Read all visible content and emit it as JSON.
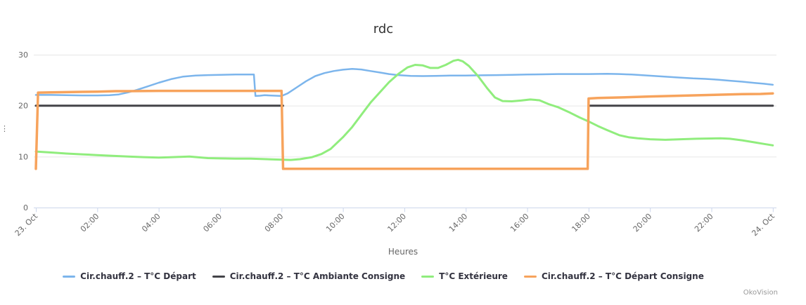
{
  "credits": "OkoVision",
  "y_axis": {
    "overflow_ellipsis": "⋮"
  },
  "chart_data": {
    "type": "line",
    "title": "rdc",
    "xlabel": "Heures",
    "ylabel": "",
    "x_unit": "hours_since_23_oct_00h",
    "xlim": [
      0,
      24.2
    ],
    "ylim": [
      0,
      30
    ],
    "grid": "horizontal",
    "legend_position": "bottom-center",
    "x_ticks": [
      {
        "h": 0,
        "label": "23. Oct"
      },
      {
        "h": 2,
        "label": "02:00"
      },
      {
        "h": 4,
        "label": "04:00"
      },
      {
        "h": 6,
        "label": "06:00"
      },
      {
        "h": 8,
        "label": "08:00"
      },
      {
        "h": 10,
        "label": "10:00"
      },
      {
        "h": 12,
        "label": "12:00"
      },
      {
        "h": 14,
        "label": "14:00"
      },
      {
        "h": 16,
        "label": "16:00"
      },
      {
        "h": 18,
        "label": "18:00"
      },
      {
        "h": 20,
        "label": "20:00"
      },
      {
        "h": 22,
        "label": "22:00"
      },
      {
        "h": 24,
        "label": "24. Oct"
      }
    ],
    "y_ticks": [
      {
        "v": 0,
        "label": "0"
      },
      {
        "v": 10,
        "label": "10"
      },
      {
        "v": 20,
        "label": "20"
      },
      {
        "v": 30,
        "label": "30"
      }
    ],
    "series": [
      {
        "name": "Cir.chauff.2 – T°C Départ",
        "color": "#7cb5ec",
        "width": 2.5,
        "points": [
          [
            0,
            22.1
          ],
          [
            0.5,
            22.1
          ],
          [
            1,
            22.05
          ],
          [
            1.5,
            22.0
          ],
          [
            2,
            22.0
          ],
          [
            2.4,
            22.05
          ],
          [
            2.7,
            22.2
          ],
          [
            3,
            22.6
          ],
          [
            3.3,
            23.1
          ],
          [
            3.6,
            23.7
          ],
          [
            4,
            24.5
          ],
          [
            4.4,
            25.2
          ],
          [
            4.8,
            25.7
          ],
          [
            5.2,
            25.9
          ],
          [
            5.6,
            26.0
          ],
          [
            6,
            26.05
          ],
          [
            6.5,
            26.1
          ],
          [
            7.1,
            26.1
          ],
          [
            7.15,
            21.9
          ],
          [
            7.3,
            21.95
          ],
          [
            7.45,
            22.05
          ],
          [
            7.6,
            22.0
          ],
          [
            8,
            21.9
          ],
          [
            8.2,
            22.4
          ],
          [
            8.5,
            23.6
          ],
          [
            8.8,
            24.8
          ],
          [
            9.1,
            25.8
          ],
          [
            9.4,
            26.4
          ],
          [
            9.7,
            26.8
          ],
          [
            10,
            27.05
          ],
          [
            10.3,
            27.2
          ],
          [
            10.6,
            27.1
          ],
          [
            10.9,
            26.8
          ],
          [
            11.2,
            26.5
          ],
          [
            11.5,
            26.2
          ],
          [
            11.8,
            26.0
          ],
          [
            12.2,
            25.85
          ],
          [
            12.6,
            25.8
          ],
          [
            13,
            25.85
          ],
          [
            13.5,
            25.9
          ],
          [
            14,
            25.9
          ],
          [
            14.5,
            25.95
          ],
          [
            15,
            26.0
          ],
          [
            15.5,
            26.05
          ],
          [
            16,
            26.1
          ],
          [
            16.5,
            26.15
          ],
          [
            17,
            26.2
          ],
          [
            18,
            26.2
          ],
          [
            18.6,
            26.25
          ],
          [
            19,
            26.2
          ],
          [
            19.4,
            26.1
          ],
          [
            19.8,
            25.95
          ],
          [
            20.2,
            25.8
          ],
          [
            20.6,
            25.65
          ],
          [
            21,
            25.5
          ],
          [
            21.4,
            25.35
          ],
          [
            21.8,
            25.25
          ],
          [
            22.2,
            25.1
          ],
          [
            22.6,
            24.9
          ],
          [
            23,
            24.7
          ],
          [
            23.4,
            24.45
          ],
          [
            23.7,
            24.3
          ],
          [
            24,
            24.1
          ]
        ]
      },
      {
        "name": "Cir.chauff.2 – T°C Ambiante Consigne",
        "color": "#434348",
        "width": 3,
        "points": [
          [
            0,
            20
          ],
          [
            8.05,
            20
          ],
          [
            null,
            null
          ],
          [
            18.02,
            20
          ],
          [
            24,
            20
          ]
        ]
      },
      {
        "name": "T°C Extérieure",
        "color": "#90ed7d",
        "width": 3,
        "points": [
          [
            0,
            11.0
          ],
          [
            0.5,
            10.8
          ],
          [
            1,
            10.6
          ],
          [
            1.5,
            10.45
          ],
          [
            2,
            10.3
          ],
          [
            2.5,
            10.15
          ],
          [
            3,
            10.0
          ],
          [
            3.5,
            9.9
          ],
          [
            4,
            9.8
          ],
          [
            4.3,
            9.85
          ],
          [
            4.7,
            9.95
          ],
          [
            5,
            10.0
          ],
          [
            5.3,
            9.85
          ],
          [
            5.6,
            9.7
          ],
          [
            6,
            9.65
          ],
          [
            6.5,
            9.6
          ],
          [
            7,
            9.6
          ],
          [
            7.5,
            9.5
          ],
          [
            8,
            9.4
          ],
          [
            8.3,
            9.35
          ],
          [
            8.6,
            9.5
          ],
          [
            9,
            9.9
          ],
          [
            9.3,
            10.5
          ],
          [
            9.6,
            11.5
          ],
          [
            10,
            13.8
          ],
          [
            10.3,
            15.8
          ],
          [
            10.6,
            18.2
          ],
          [
            10.9,
            20.6
          ],
          [
            11.2,
            22.6
          ],
          [
            11.5,
            24.6
          ],
          [
            11.8,
            26.2
          ],
          [
            12.1,
            27.5
          ],
          [
            12.35,
            28.0
          ],
          [
            12.6,
            27.9
          ],
          [
            12.85,
            27.4
          ],
          [
            13.1,
            27.4
          ],
          [
            13.35,
            28.0
          ],
          [
            13.6,
            28.8
          ],
          [
            13.75,
            29.0
          ],
          [
            13.9,
            28.7
          ],
          [
            14.1,
            27.8
          ],
          [
            14.4,
            25.8
          ],
          [
            14.7,
            23.4
          ],
          [
            14.95,
            21.6
          ],
          [
            15.2,
            20.9
          ],
          [
            15.5,
            20.85
          ],
          [
            15.8,
            21.0
          ],
          [
            16.1,
            21.2
          ],
          [
            16.4,
            21.05
          ],
          [
            16.7,
            20.3
          ],
          [
            17,
            19.7
          ],
          [
            17.4,
            18.6
          ],
          [
            17.7,
            17.7
          ],
          [
            18,
            16.9
          ],
          [
            18.3,
            16.0
          ],
          [
            18.6,
            15.2
          ],
          [
            19,
            14.2
          ],
          [
            19.3,
            13.8
          ],
          [
            19.6,
            13.6
          ],
          [
            20,
            13.4
          ],
          [
            20.5,
            13.3
          ],
          [
            21,
            13.4
          ],
          [
            21.5,
            13.5
          ],
          [
            22,
            13.55
          ],
          [
            22.3,
            13.6
          ],
          [
            22.6,
            13.5
          ],
          [
            23,
            13.2
          ],
          [
            23.4,
            12.8
          ],
          [
            23.7,
            12.5
          ],
          [
            24,
            12.2
          ]
        ]
      },
      {
        "name": "Cir.chauff.2 – T°C Départ Consigne",
        "color": "#f7a35c",
        "width": 3.5,
        "points": [
          [
            0,
            7.6
          ],
          [
            0.07,
            22.55
          ],
          [
            0.5,
            22.6
          ],
          [
            1,
            22.65
          ],
          [
            1.5,
            22.7
          ],
          [
            2,
            22.75
          ],
          [
            2.6,
            22.85
          ],
          [
            3,
            22.85
          ],
          [
            4,
            22.9
          ],
          [
            6,
            22.9
          ],
          [
            8.0,
            22.9
          ],
          [
            8.05,
            7.6
          ],
          [
            12,
            7.6
          ],
          [
            17.97,
            7.6
          ],
          [
            18.0,
            21.4
          ],
          [
            18.3,
            21.5
          ],
          [
            19,
            21.6
          ],
          [
            20,
            21.8
          ],
          [
            21,
            21.95
          ],
          [
            22,
            22.1
          ],
          [
            23,
            22.25
          ],
          [
            23.6,
            22.3
          ],
          [
            24,
            22.4
          ]
        ]
      }
    ]
  }
}
